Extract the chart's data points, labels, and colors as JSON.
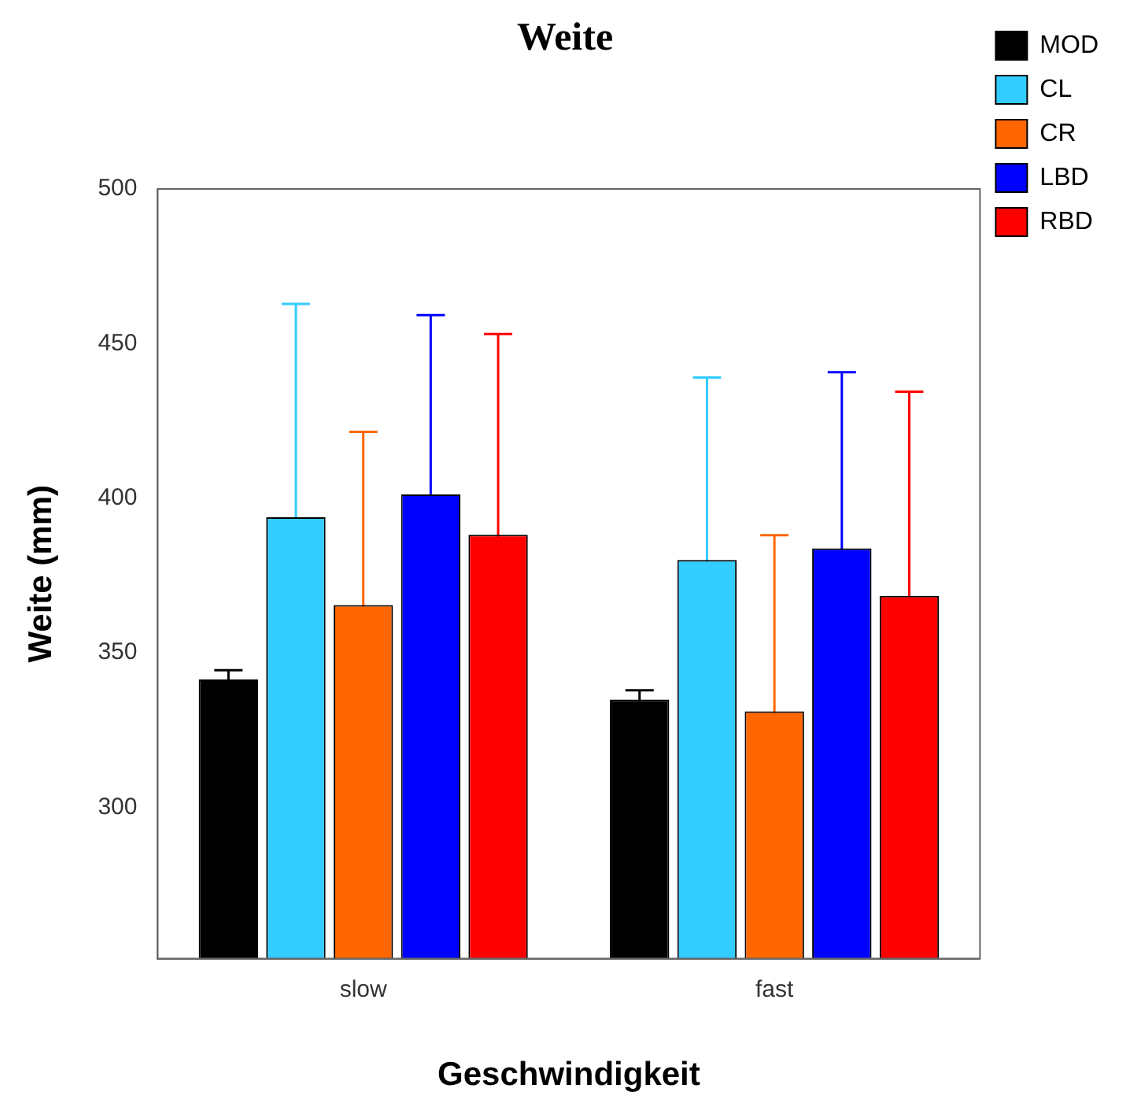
{
  "chart_data": {
    "type": "bar",
    "title": "Weite",
    "xlabel": "Geschwindigkeit",
    "ylabel": "Weite (mm)",
    "categories": [
      "slow",
      "fast"
    ],
    "series": [
      {
        "name": "MOD",
        "color": "#000000",
        "values": [
          341.3,
          334.8
        ],
        "errors": [
          3,
          3
        ]
      },
      {
        "name": "CL",
        "color": "#33ccff",
        "values": [
          393.8,
          380.0
        ],
        "errors": [
          69,
          59
        ]
      },
      {
        "name": "CR",
        "color": "#ff6600",
        "values": [
          365.4,
          331.0
        ],
        "errors": [
          56,
          57
        ]
      },
      {
        "name": "LBD",
        "color": "#0000ff",
        "values": [
          401.2,
          383.7
        ],
        "errors": [
          58,
          57
        ]
      },
      {
        "name": "RBD",
        "color": "#ff0000",
        "values": [
          388.1,
          368.4
        ],
        "errors": [
          65,
          66
        ]
      }
    ],
    "ylim": [
      251,
      500
    ],
    "yticks": [
      300,
      350,
      400,
      450,
      500
    ],
    "grid": false,
    "legend": "right"
  }
}
